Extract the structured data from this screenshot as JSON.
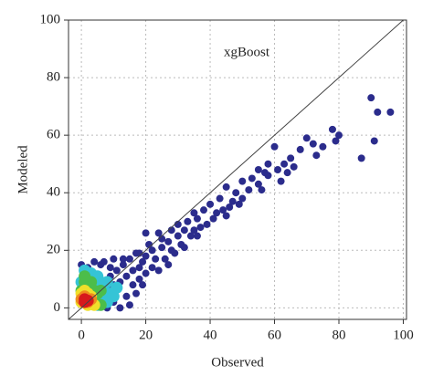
{
  "chart_data": {
    "type": "scatter",
    "title": "xgBoost",
    "x_label": "Observed",
    "y_label": "Modeled",
    "xlim": [
      -4,
      101
    ],
    "ylim": [
      -4,
      100
    ],
    "xticks": [
      0,
      20,
      40,
      60,
      80,
      100
    ],
    "yticks": [
      0,
      20,
      40,
      60,
      80,
      100
    ],
    "grid": true,
    "identity_line": true,
    "series": [
      {
        "color": "#2b2c8c",
        "x": [
          90,
          92,
          96,
          91,
          87,
          78,
          79,
          80,
          75,
          72,
          70,
          73,
          68,
          65,
          63,
          60,
          58,
          57,
          55,
          53,
          50,
          48,
          45,
          47,
          43,
          40,
          42,
          38,
          36,
          35,
          33,
          32,
          30,
          30,
          28,
          27,
          25,
          25,
          24,
          22,
          23,
          21,
          20,
          19,
          18,
          17,
          16,
          15,
          14,
          13,
          12,
          11,
          10,
          9,
          8,
          7,
          13,
          10,
          16,
          18,
          20,
          22,
          19,
          26,
          28,
          31,
          34,
          37,
          41,
          44,
          46,
          50,
          52,
          55,
          58,
          61,
          64,
          66,
          62,
          56,
          49,
          45,
          39,
          35,
          29,
          24,
          27,
          32,
          36,
          20,
          18,
          8,
          12,
          15,
          10,
          14,
          17,
          6,
          4,
          2,
          0,
          9
        ],
        "y": [
          73,
          68,
          68,
          58,
          52,
          62,
          58,
          60,
          56,
          57,
          59,
          53,
          55,
          52,
          50,
          56,
          50,
          47,
          48,
          45,
          44,
          40,
          42,
          37,
          38,
          36,
          33,
          34,
          31,
          33,
          30,
          27,
          29,
          25,
          27,
          23,
          24,
          21,
          26,
          20,
          17,
          22,
          18,
          16,
          14,
          19,
          13,
          17,
          11,
          15,
          9,
          13,
          8,
          11,
          7,
          16,
          17,
          17,
          8,
          10,
          12,
          14,
          8,
          17,
          20,
          22,
          25,
          28,
          31,
          34,
          35,
          38,
          41,
          43,
          46,
          48,
          47,
          49,
          44,
          41,
          36,
          32,
          29,
          27,
          19,
          13,
          15,
          21,
          25,
          26,
          19,
          0,
          0,
          1,
          2,
          4,
          5,
          15,
          16,
          14,
          15,
          14
        ]
      },
      {
        "color": "#35c4d6",
        "x": [
          1,
          3,
          5,
          2,
          6,
          4,
          8,
          7,
          9,
          10,
          3,
          6,
          8,
          11,
          0,
          5
        ],
        "y": [
          13,
          12,
          11,
          10,
          9,
          8,
          9,
          6,
          5,
          4,
          6,
          3,
          2,
          7,
          9,
          1
        ]
      },
      {
        "color": "#4cbd4a",
        "x": [
          1,
          3,
          2,
          4,
          5,
          6,
          0,
          4,
          6,
          1
        ],
        "y": [
          9,
          9,
          7,
          6,
          5,
          6,
          6,
          3,
          1,
          11
        ]
      },
      {
        "color": "#f0df2a",
        "x": [
          0,
          1,
          2,
          3,
          0,
          3,
          2,
          4
        ],
        "y": [
          5,
          6,
          5,
          4,
          2,
          2,
          1,
          1
        ]
      },
      {
        "color": "#ef8a1e",
        "x": [
          1,
          2,
          0,
          2,
          3
        ],
        "y": [
          4,
          3,
          3,
          2,
          3
        ]
      },
      {
        "color": "#d7191c",
        "x": [
          1,
          1,
          2
        ],
        "y": [
          3,
          2,
          2.5
        ]
      }
    ]
  }
}
